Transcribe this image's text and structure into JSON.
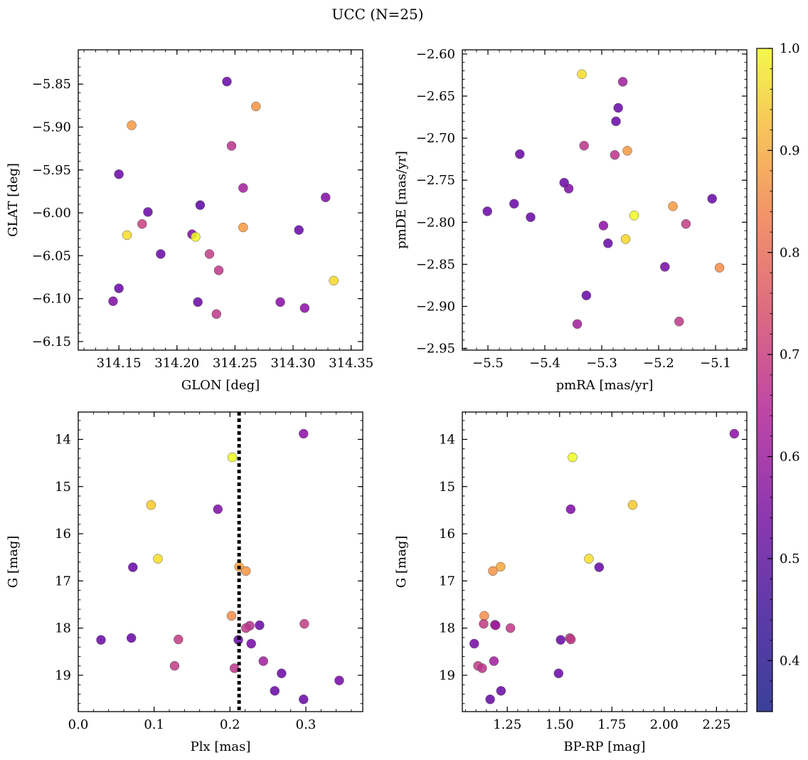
{
  "title": "UCC (N=25)",
  "colorbar": {
    "colormap": "plasma",
    "range": [
      0.35,
      1.0
    ],
    "ticks": [
      0.4,
      0.5,
      0.6,
      0.7,
      0.8,
      0.9,
      1.0
    ],
    "tick_labels": [
      "0.4",
      "0.5",
      "0.6",
      "0.7",
      "0.8",
      "0.9",
      "1.0"
    ]
  },
  "chart_data": [
    {
      "type": "scatter",
      "title": "",
      "xlabel": "GLON [deg]",
      "ylabel": "GLAT [deg]",
      "xlim": [
        314.115,
        314.36
      ],
      "ylim": [
        -6.16,
        -5.81
      ],
      "xticks": [
        314.15,
        314.2,
        314.25,
        314.3,
        314.35
      ],
      "xtick_labels": [
        "314.15",
        "314.20",
        "314.25",
        "314.30",
        "314.35"
      ],
      "yticks": [
        -5.85,
        -5.9,
        -5.95,
        -6.0,
        -6.05,
        -6.1,
        -6.15
      ],
      "ytick_labels": [
        "−5.85",
        "−5.90",
        "−5.95",
        "−6.00",
        "−6.05",
        "−6.10",
        "−6.15"
      ],
      "points": [
        {
          "x": 314.243,
          "y": -5.847,
          "c": 0.4
        },
        {
          "x": 314.268,
          "y": -5.876,
          "c": 0.75
        },
        {
          "x": 314.161,
          "y": -5.898,
          "c": 0.76
        },
        {
          "x": 314.247,
          "y": -5.922,
          "c": 0.55
        },
        {
          "x": 314.15,
          "y": -5.955,
          "c": 0.4
        },
        {
          "x": 314.257,
          "y": -5.971,
          "c": 0.5
        },
        {
          "x": 314.328,
          "y": -5.982,
          "c": 0.44
        },
        {
          "x": 314.22,
          "y": -5.991,
          "c": 0.38
        },
        {
          "x": 314.175,
          "y": -5.999,
          "c": 0.4
        },
        {
          "x": 314.17,
          "y": -6.013,
          "c": 0.58
        },
        {
          "x": 314.257,
          "y": -6.017,
          "c": 0.76
        },
        {
          "x": 314.305,
          "y": -6.02,
          "c": 0.4
        },
        {
          "x": 314.157,
          "y": -6.026,
          "c": 0.87
        },
        {
          "x": 314.213,
          "y": -6.025,
          "c": 0.44
        },
        {
          "x": 314.216,
          "y": -6.028,
          "c": 0.98
        },
        {
          "x": 314.186,
          "y": -6.048,
          "c": 0.4
        },
        {
          "x": 314.228,
          "y": -6.048,
          "c": 0.57
        },
        {
          "x": 314.236,
          "y": -6.067,
          "c": 0.56
        },
        {
          "x": 314.335,
          "y": -6.079,
          "c": 0.86
        },
        {
          "x": 314.15,
          "y": -6.088,
          "c": 0.4
        },
        {
          "x": 314.145,
          "y": -6.103,
          "c": 0.44
        },
        {
          "x": 314.218,
          "y": -6.104,
          "c": 0.4
        },
        {
          "x": 314.289,
          "y": -6.104,
          "c": 0.45
        },
        {
          "x": 314.31,
          "y": -6.111,
          "c": 0.46
        },
        {
          "x": 314.234,
          "y": -6.118,
          "c": 0.56
        }
      ]
    },
    {
      "type": "scatter",
      "title": "",
      "xlabel": "pmRA [mas/yr]",
      "ylabel": "pmDE [mas/yr]",
      "xlim": [
        -5.545,
        -5.045
      ],
      "ylim": [
        -2.952,
        -2.595
      ],
      "xticks": [
        -5.5,
        -5.4,
        -5.3,
        -5.2,
        -5.1
      ],
      "xtick_labels": [
        "−5.5",
        "−5.4",
        "−5.3",
        "−5.2",
        "−5.1"
      ],
      "yticks": [
        -2.6,
        -2.65,
        -2.7,
        -2.75,
        -2.8,
        -2.85,
        -2.9,
        -2.95
      ],
      "ytick_labels": [
        "−2.60",
        "−2.65",
        "−2.70",
        "−2.75",
        "−2.80",
        "−2.85",
        "−2.90",
        "−2.95"
      ],
      "points": [
        {
          "x": -5.335,
          "y": -2.624,
          "c": 0.87
        },
        {
          "x": -5.263,
          "y": -2.633,
          "c": 0.5
        },
        {
          "x": -5.271,
          "y": -2.664,
          "c": 0.4
        },
        {
          "x": -5.275,
          "y": -2.68,
          "c": 0.4
        },
        {
          "x": -5.331,
          "y": -2.709,
          "c": 0.55
        },
        {
          "x": -5.277,
          "y": -2.72,
          "c": 0.55
        },
        {
          "x": -5.255,
          "y": -2.715,
          "c": 0.76
        },
        {
          "x": -5.444,
          "y": -2.719,
          "c": 0.4
        },
        {
          "x": -5.366,
          "y": -2.753,
          "c": 0.4
        },
        {
          "x": -5.358,
          "y": -2.76,
          "c": 0.44
        },
        {
          "x": -5.454,
          "y": -2.778,
          "c": 0.4
        },
        {
          "x": -5.106,
          "y": -2.772,
          "c": 0.4
        },
        {
          "x": -5.501,
          "y": -2.787,
          "c": 0.4
        },
        {
          "x": -5.175,
          "y": -2.781,
          "c": 0.76
        },
        {
          "x": -5.243,
          "y": -2.792,
          "c": 0.98
        },
        {
          "x": -5.425,
          "y": -2.794,
          "c": 0.4
        },
        {
          "x": -5.152,
          "y": -2.802,
          "c": 0.57
        },
        {
          "x": -5.297,
          "y": -2.804,
          "c": 0.46
        },
        {
          "x": -5.258,
          "y": -2.82,
          "c": 0.86
        },
        {
          "x": -5.289,
          "y": -2.825,
          "c": 0.4
        },
        {
          "x": -5.189,
          "y": -2.853,
          "c": 0.42
        },
        {
          "x": -5.093,
          "y": -2.854,
          "c": 0.74
        },
        {
          "x": -5.327,
          "y": -2.887,
          "c": 0.4
        },
        {
          "x": -5.343,
          "y": -2.921,
          "c": 0.5
        },
        {
          "x": -5.164,
          "y": -2.918,
          "c": 0.56
        }
      ]
    },
    {
      "type": "scatter",
      "title": "",
      "xlabel": "Plx [mas]",
      "ylabel": "G [mag]",
      "xlim": [
        0.0,
        0.375
      ],
      "ylim": [
        19.77,
        13.42
      ],
      "y_inverted": true,
      "vline": {
        "x": 0.212,
        "style": "dotted"
      },
      "xticks": [
        0.0,
        0.1,
        0.2,
        0.3
      ],
      "xtick_labels": [
        "0.0",
        "0.1",
        "0.2",
        "0.3"
      ],
      "yticks": [
        14,
        15,
        16,
        17,
        18,
        19
      ],
      "ytick_labels": [
        "14",
        "15",
        "16",
        "17",
        "18",
        "19"
      ],
      "points": [
        {
          "x": 0.297,
          "y": 13.88,
          "c": 0.46
        },
        {
          "x": 0.203,
          "y": 14.38,
          "c": 0.98
        },
        {
          "x": 0.096,
          "y": 15.39,
          "c": 0.84
        },
        {
          "x": 0.184,
          "y": 15.48,
          "c": 0.44
        },
        {
          "x": 0.105,
          "y": 16.53,
          "c": 0.87
        },
        {
          "x": 0.072,
          "y": 16.71,
          "c": 0.4
        },
        {
          "x": 0.212,
          "y": 16.7,
          "c": 0.78
        },
        {
          "x": 0.221,
          "y": 16.79,
          "c": 0.75
        },
        {
          "x": 0.202,
          "y": 17.74,
          "c": 0.74
        },
        {
          "x": 0.298,
          "y": 17.91,
          "c": 0.57
        },
        {
          "x": 0.226,
          "y": 17.95,
          "c": 0.54
        },
        {
          "x": 0.239,
          "y": 17.94,
          "c": 0.4
        },
        {
          "x": 0.221,
          "y": 18.0,
          "c": 0.56
        },
        {
          "x": 0.03,
          "y": 18.25,
          "c": 0.4
        },
        {
          "x": 0.07,
          "y": 18.21,
          "c": 0.4
        },
        {
          "x": 0.132,
          "y": 18.24,
          "c": 0.57
        },
        {
          "x": 0.211,
          "y": 18.25,
          "c": 0.4
        },
        {
          "x": 0.228,
          "y": 18.33,
          "c": 0.42
        },
        {
          "x": 0.127,
          "y": 18.8,
          "c": 0.57
        },
        {
          "x": 0.206,
          "y": 18.85,
          "c": 0.55
        },
        {
          "x": 0.244,
          "y": 18.7,
          "c": 0.5
        },
        {
          "x": 0.268,
          "y": 18.96,
          "c": 0.4
        },
        {
          "x": 0.344,
          "y": 19.11,
          "c": 0.42
        },
        {
          "x": 0.259,
          "y": 19.33,
          "c": 0.4
        },
        {
          "x": 0.297,
          "y": 19.51,
          "c": 0.4
        }
      ]
    },
    {
      "type": "scatter",
      "title": "",
      "xlabel": "BP-RP [mag]",
      "ylabel": "G [mag]",
      "xlim": [
        1.035,
        2.395
      ],
      "ylim": [
        19.77,
        13.42
      ],
      "y_inverted": true,
      "xticks": [
        1.25,
        1.5,
        1.75,
        2.0,
        2.25
      ],
      "xtick_labels": [
        "1.25",
        "1.50",
        "1.75",
        "2.00",
        "2.25"
      ],
      "yticks": [
        14,
        15,
        16,
        17,
        18,
        19
      ],
      "ytick_labels": [
        "14",
        "15",
        "16",
        "17",
        "18",
        "19"
      ],
      "points": [
        {
          "x": 2.335,
          "y": 13.88,
          "c": 0.46
        },
        {
          "x": 1.562,
          "y": 14.38,
          "c": 0.98
        },
        {
          "x": 1.849,
          "y": 15.39,
          "c": 0.84
        },
        {
          "x": 1.553,
          "y": 15.48,
          "c": 0.44
        },
        {
          "x": 1.64,
          "y": 16.53,
          "c": 0.87
        },
        {
          "x": 1.689,
          "y": 16.71,
          "c": 0.4
        },
        {
          "x": 1.218,
          "y": 16.7,
          "c": 0.78
        },
        {
          "x": 1.181,
          "y": 16.79,
          "c": 0.75
        },
        {
          "x": 1.14,
          "y": 17.74,
          "c": 0.74
        },
        {
          "x": 1.137,
          "y": 17.91,
          "c": 0.57
        },
        {
          "x": 1.191,
          "y": 17.93,
          "c": 0.49
        },
        {
          "x": 1.194,
          "y": 17.94,
          "c": 0.5
        },
        {
          "x": 1.265,
          "y": 18.0,
          "c": 0.56
        },
        {
          "x": 1.549,
          "y": 18.21,
          "c": 0.57
        },
        {
          "x": 1.505,
          "y": 18.25,
          "c": 0.4
        },
        {
          "x": 1.554,
          "y": 18.24,
          "c": 0.56
        },
        {
          "x": 1.092,
          "y": 18.33,
          "c": 0.42
        },
        {
          "x": 1.186,
          "y": 18.7,
          "c": 0.5
        },
        {
          "x": 1.11,
          "y": 18.8,
          "c": 0.57
        },
        {
          "x": 1.13,
          "y": 18.85,
          "c": 0.55
        },
        {
          "x": 1.495,
          "y": 18.96,
          "c": 0.4
        },
        {
          "x": 1.22,
          "y": 19.33,
          "c": 0.4
        },
        {
          "x": 1.168,
          "y": 19.51,
          "c": 0.4
        }
      ]
    }
  ]
}
